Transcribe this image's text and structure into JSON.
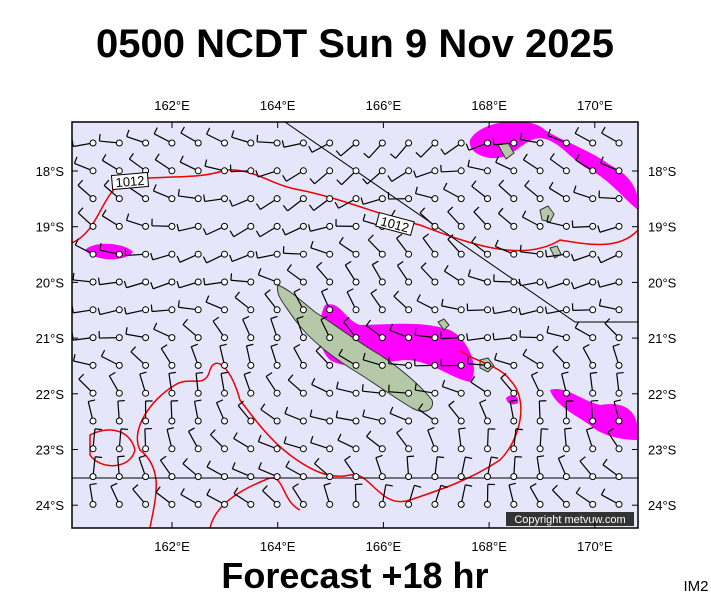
{
  "title": "0500 NCDT Sun 9 Nov 2025",
  "map": {
    "lon_labels": [
      "162°E",
      "164°E",
      "166°E",
      "168°E",
      "170°E"
    ],
    "lat_labels": [
      "18°S",
      "19°S",
      "20°S",
      "21°S",
      "22°S",
      "23°S",
      "24°S"
    ],
    "isobar_labels": [
      "1012",
      "1012"
    ],
    "copyright": "Copyright metvuw.com"
  },
  "footer": {
    "forecast": "Forecast +18 hr",
    "code": "IM2"
  }
}
